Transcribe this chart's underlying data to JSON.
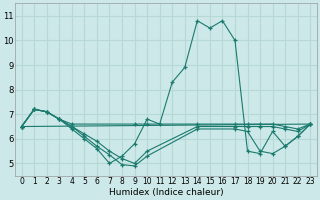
{
  "xlabel": "Humidex (Indice chaleur)",
  "background_color": "#cce8e8",
  "grid_color": "#b8d8d8",
  "line_color": "#1a7a6e",
  "xlim": [
    -0.5,
    23.5
  ],
  "ylim": [
    4.5,
    11.5
  ],
  "xticks": [
    0,
    1,
    2,
    3,
    4,
    5,
    6,
    7,
    8,
    9,
    10,
    11,
    12,
    13,
    14,
    15,
    16,
    17,
    18,
    19,
    20,
    21,
    22,
    23
  ],
  "yticks": [
    5,
    6,
    7,
    8,
    9,
    10,
    11
  ],
  "lines": [
    {
      "x": [
        0,
        1,
        2,
        3,
        4,
        5,
        6,
        7,
        8,
        9,
        10,
        11,
        12,
        13,
        14,
        15,
        16,
        17,
        18,
        19,
        20,
        21,
        22,
        23
      ],
      "y": [
        6.5,
        7.2,
        7.1,
        6.8,
        6.4,
        6.0,
        5.6,
        5.0,
        5.3,
        5.8,
        6.8,
        6.6,
        8.3,
        8.9,
        10.8,
        10.5,
        10.8,
        10.0,
        5.5,
        5.4,
        6.3,
        5.7,
        6.1,
        6.6
      ]
    },
    {
      "x": [
        0,
        23
      ],
      "y": [
        6.5,
        6.6
      ]
    },
    {
      "x": [
        0,
        1,
        2,
        3,
        4,
        9,
        10,
        14,
        17,
        18,
        19,
        20,
        21,
        22,
        23
      ],
      "y": [
        6.5,
        7.2,
        7.1,
        6.8,
        6.6,
        6.6,
        6.6,
        6.6,
        6.6,
        6.6,
        6.6,
        6.6,
        6.5,
        6.4,
        6.6
      ]
    },
    {
      "x": [
        0,
        1,
        2,
        3,
        4,
        5,
        6,
        7,
        8,
        9,
        10,
        14,
        17,
        18,
        19,
        20,
        21,
        22,
        23
      ],
      "y": [
        6.5,
        7.2,
        7.1,
        6.8,
        6.5,
        6.2,
        5.9,
        5.5,
        5.2,
        5.0,
        5.5,
        6.5,
        6.5,
        6.5,
        6.5,
        6.5,
        6.4,
        6.3,
        6.6
      ]
    },
    {
      "x": [
        0,
        1,
        2,
        3,
        4,
        5,
        6,
        7,
        8,
        9,
        10,
        14,
        17,
        18,
        19,
        20,
        21,
        22,
        23
      ],
      "y": [
        6.5,
        7.2,
        7.1,
        6.8,
        6.5,
        6.1,
        5.7,
        5.35,
        4.95,
        4.9,
        5.3,
        6.4,
        6.4,
        6.3,
        5.5,
        5.4,
        5.7,
        6.1,
        6.6
      ]
    }
  ]
}
